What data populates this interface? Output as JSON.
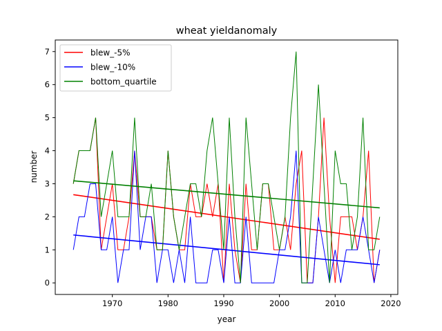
{
  "chart_data": {
    "type": "line",
    "title": "wheat yieldanomaly",
    "xlabel": "year",
    "ylabel": "number",
    "xlim": [
      1959.75,
      2021.25
    ],
    "ylim": [
      -0.35,
      7.35
    ],
    "xticks": [
      1970,
      1980,
      1990,
      2000,
      2010,
      2020
    ],
    "yticks": [
      0,
      1,
      2,
      3,
      4,
      5,
      6,
      7
    ],
    "grid": false,
    "legend": "top-left",
    "x": [
      1963,
      1964,
      1965,
      1966,
      1967,
      1968,
      1969,
      1970,
      1971,
      1972,
      1973,
      1974,
      1975,
      1976,
      1977,
      1978,
      1979,
      1980,
      1981,
      1982,
      1983,
      1984,
      1985,
      1986,
      1987,
      1988,
      1989,
      1990,
      1991,
      1992,
      1993,
      1994,
      1995,
      1996,
      1997,
      1998,
      1999,
      2000,
      2001,
      2002,
      2003,
      2004,
      2005,
      2006,
      2007,
      2008,
      2009,
      2010,
      2011,
      2012,
      2013,
      2014,
      2015,
      2016,
      2017,
      2018
    ],
    "series": [
      {
        "name": "blew_-5%",
        "color": "#ff0000",
        "values": [
          3,
          4,
          4,
          4,
          5,
          1,
          2,
          3,
          1,
          1,
          2,
          4,
          2,
          2,
          2,
          1,
          1,
          4,
          2,
          1,
          1,
          3,
          2,
          2,
          3,
          2,
          3,
          0,
          3,
          1,
          0,
          3,
          1,
          1,
          3,
          3,
          1,
          1,
          2,
          1,
          3,
          4,
          0,
          0,
          2,
          5,
          2,
          0,
          2,
          2,
          2,
          1,
          2,
          4,
          0,
          1
        ],
        "trend": [
          2.67,
          1.32
        ]
      },
      {
        "name": "blew_-10%",
        "color": "#0000ff",
        "values": [
          1,
          2,
          2,
          3,
          3,
          1,
          1,
          2,
          0,
          1,
          1,
          4,
          1,
          2,
          2,
          0,
          1,
          1,
          0,
          1,
          0,
          2,
          0,
          0,
          0,
          1,
          1,
          0,
          2,
          0,
          0,
          2,
          0,
          0,
          0,
          0,
          0,
          1,
          1,
          2,
          4,
          0,
          0,
          0,
          2,
          1,
          0,
          1,
          0,
          1,
          1,
          1,
          2,
          1,
          0,
          1
        ],
        "trend": [
          1.45,
          0.55
        ]
      },
      {
        "name": "bottom_quartile",
        "color": "#008000",
        "values": [
          3,
          4,
          4,
          4,
          5,
          2,
          3,
          4,
          2,
          2,
          2,
          5,
          2,
          2,
          3,
          1,
          1,
          4,
          2,
          1,
          2,
          3,
          3,
          2,
          4,
          5,
          3,
          1,
          5,
          2,
          0,
          5,
          3,
          1,
          3,
          3,
          2,
          1,
          2,
          5,
          7,
          0,
          0,
          3,
          6,
          3,
          0,
          4,
          3,
          3,
          1,
          2,
          5,
          1,
          1,
          2
        ],
        "trend": [
          3.09,
          2.27
        ]
      }
    ]
  }
}
